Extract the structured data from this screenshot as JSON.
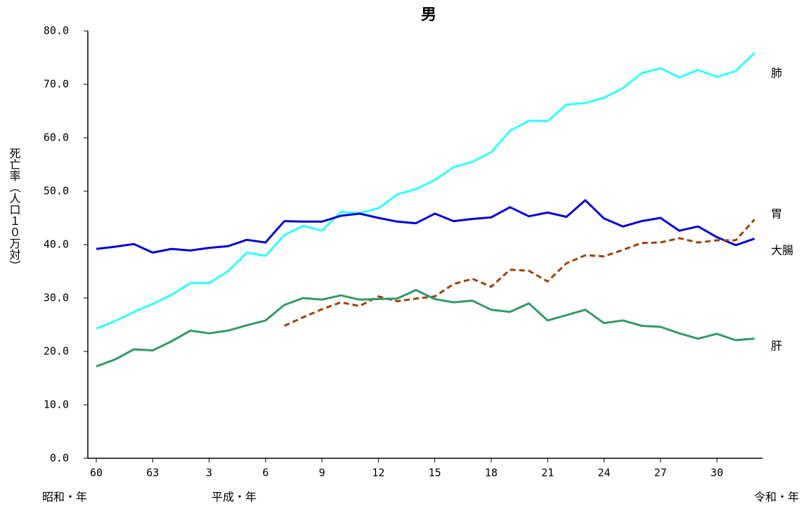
{
  "chart_data": {
    "type": "line",
    "title": "男",
    "y_label": "死亡率（人口１０万対）",
    "era_labels": [
      "昭和・年",
      "平成・年",
      "令和・年"
    ],
    "categories": [
      "60",
      null,
      null,
      "63",
      null,
      null,
      "3",
      null,
      null,
      "6",
      null,
      null,
      "9",
      null,
      null,
      "12",
      null,
      null,
      "15",
      null,
      null,
      "18",
      null,
      null,
      "21",
      null,
      null,
      "24",
      null,
      null,
      "27",
      null,
      null,
      "30",
      null,
      null
    ],
    "ylim": [
      0,
      80
    ],
    "yticks": [
      {
        "value": 0,
        "label": "0.0"
      },
      {
        "value": 10,
        "label": "10.0"
      },
      {
        "value": 20,
        "label": "20.0"
      },
      {
        "value": 30,
        "label": "30.0"
      },
      {
        "value": 40,
        "label": "40.0"
      },
      {
        "value": 50,
        "label": "50.0"
      },
      {
        "value": 60,
        "label": "60.0"
      },
      {
        "value": 70,
        "label": "70.0"
      },
      {
        "value": 80,
        "label": "80.0"
      }
    ],
    "series": [
      {
        "name": "肺",
        "color": "#33ffff",
        "dashed": false,
        "values": [
          24.3,
          25.7,
          27.4,
          28.9,
          30.6,
          32.8,
          32.8,
          35.0,
          38.5,
          37.9,
          41.8,
          43.5,
          42.6,
          46.1,
          45.9,
          46.8,
          49.4,
          50.4,
          52.1,
          54.5,
          55.5,
          57.3,
          61.3,
          63.2,
          63.1,
          66.2,
          66.5,
          67.5,
          69.3,
          72.1,
          73.0,
          71.3,
          72.7,
          71.4,
          72.5,
          75.9
        ]
      },
      {
        "name": "胃",
        "color": "#0000dd",
        "dashed": false,
        "values": [
          39.2,
          39.6,
          40.1,
          38.5,
          39.2,
          38.9,
          39.4,
          39.7,
          40.9,
          40.4,
          44.4,
          44.3,
          44.3,
          45.4,
          45.8,
          45.0,
          44.3,
          44.0,
          45.8,
          44.4,
          44.8,
          45.1,
          47.0,
          45.3,
          46.0,
          45.2,
          48.3,
          44.9,
          43.4,
          44.4,
          45.0,
          42.6,
          43.4,
          41.4,
          39.9,
          41.1
        ]
      },
      {
        "name": "大腸",
        "color": "#a0400a",
        "dashed": true,
        "values": [
          null,
          null,
          null,
          null,
          null,
          null,
          null,
          null,
          null,
          null,
          24.8,
          26.4,
          27.9,
          29.2,
          28.5,
          30.3,
          29.4,
          29.9,
          30.3,
          32.6,
          33.6,
          32.1,
          35.3,
          35.1,
          33.1,
          36.5,
          38.0,
          37.8,
          39.0,
          40.3,
          40.4,
          41.2,
          40.4,
          40.8,
          40.8,
          44.7
        ]
      },
      {
        "name": "肝",
        "color": "#339966",
        "dashed": false,
        "values": [
          17.2,
          18.5,
          20.4,
          20.2,
          21.9,
          23.9,
          23.4,
          23.9,
          24.9,
          25.8,
          28.7,
          30.0,
          29.7,
          30.5,
          29.7,
          29.8,
          29.9,
          31.5,
          29.8,
          29.2,
          29.5,
          27.8,
          27.4,
          29.0,
          25.8,
          26.8,
          27.8,
          25.3,
          25.8,
          24.8,
          24.6,
          23.4,
          22.4,
          23.3,
          22.1,
          22.4
        ]
      }
    ]
  }
}
